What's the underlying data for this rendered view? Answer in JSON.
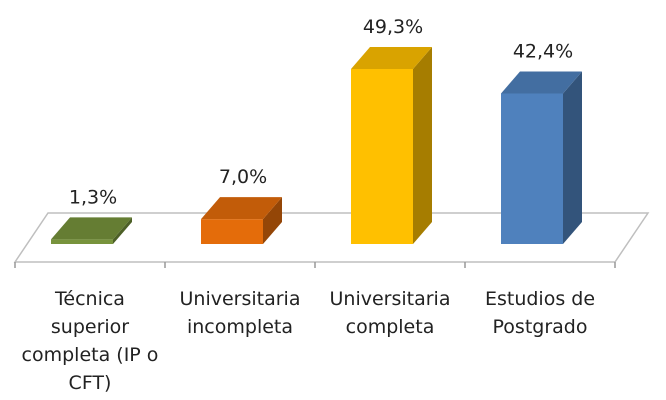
{
  "chart_data": {
    "type": "bar3d",
    "categories": [
      "Técnica superior completa (IP o CFT)",
      "Universitaria incompleta",
      "Universitaria completa",
      "Estudios de Postgrado"
    ],
    "values": [
      1.3,
      7.0,
      49.3,
      42.4
    ],
    "value_labels": [
      "1,3%",
      "7,0%",
      "49,3%",
      "42,4%"
    ],
    "colors": [
      "#77933c",
      "#e46c0a",
      "#ffc000",
      "#4f81bd"
    ]
  }
}
